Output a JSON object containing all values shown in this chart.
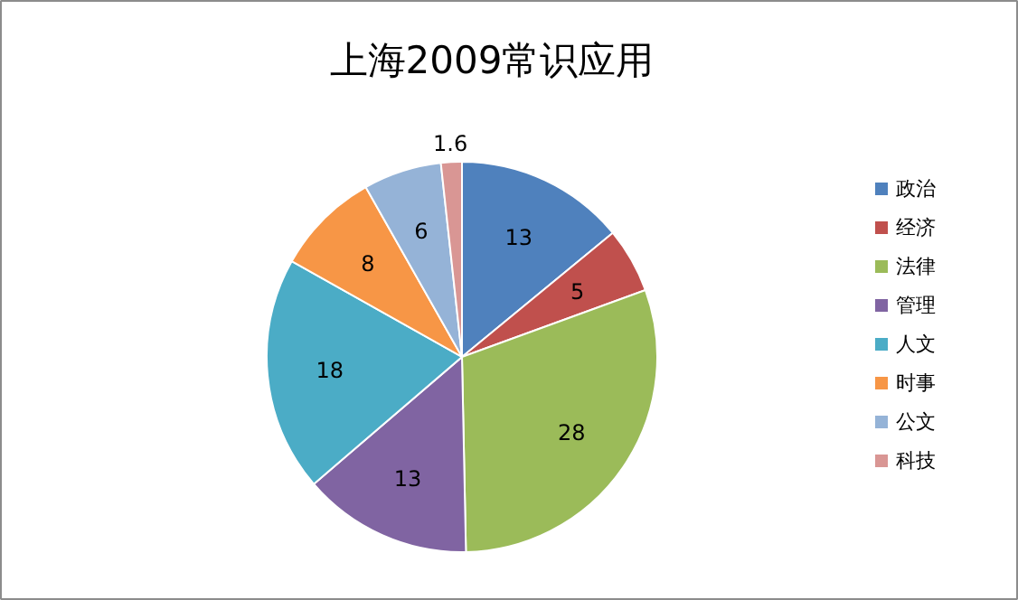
{
  "chart_data": {
    "type": "pie",
    "title": "上海2009常识应用",
    "categories": [
      "政治",
      "经济",
      "法律",
      "管理",
      "人文",
      "时事",
      "公文",
      "科技"
    ],
    "values": [
      13,
      5,
      28,
      13,
      18,
      8,
      6,
      1.6
    ],
    "colors": [
      "#4f81bd",
      "#c0504d",
      "#9bbb59",
      "#8064a2",
      "#4bacc6",
      "#f79646",
      "#95b3d7",
      "#d99694"
    ],
    "data_labels": true,
    "legend": "right"
  }
}
